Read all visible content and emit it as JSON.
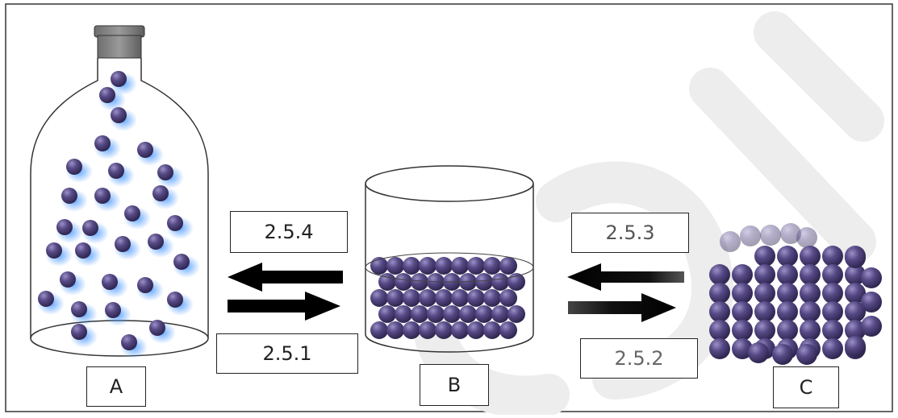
{
  "containers": {
    "bottle_label": "A",
    "beaker_label": "B",
    "solid_label": "C"
  },
  "processes": {
    "a_to_b_top": "2.5.4",
    "a_to_b_bottom": "2.5.1",
    "b_to_c_top": "2.5.3",
    "b_to_c_bottom": "2.5.2"
  },
  "colors": {
    "particle": "#4b3f74",
    "particle_highlight": "#8a7fb5",
    "gas_glow": "#5aa2ff",
    "arrow": "#000000",
    "outline": "#222222",
    "watermark": "#e9e9e9"
  }
}
